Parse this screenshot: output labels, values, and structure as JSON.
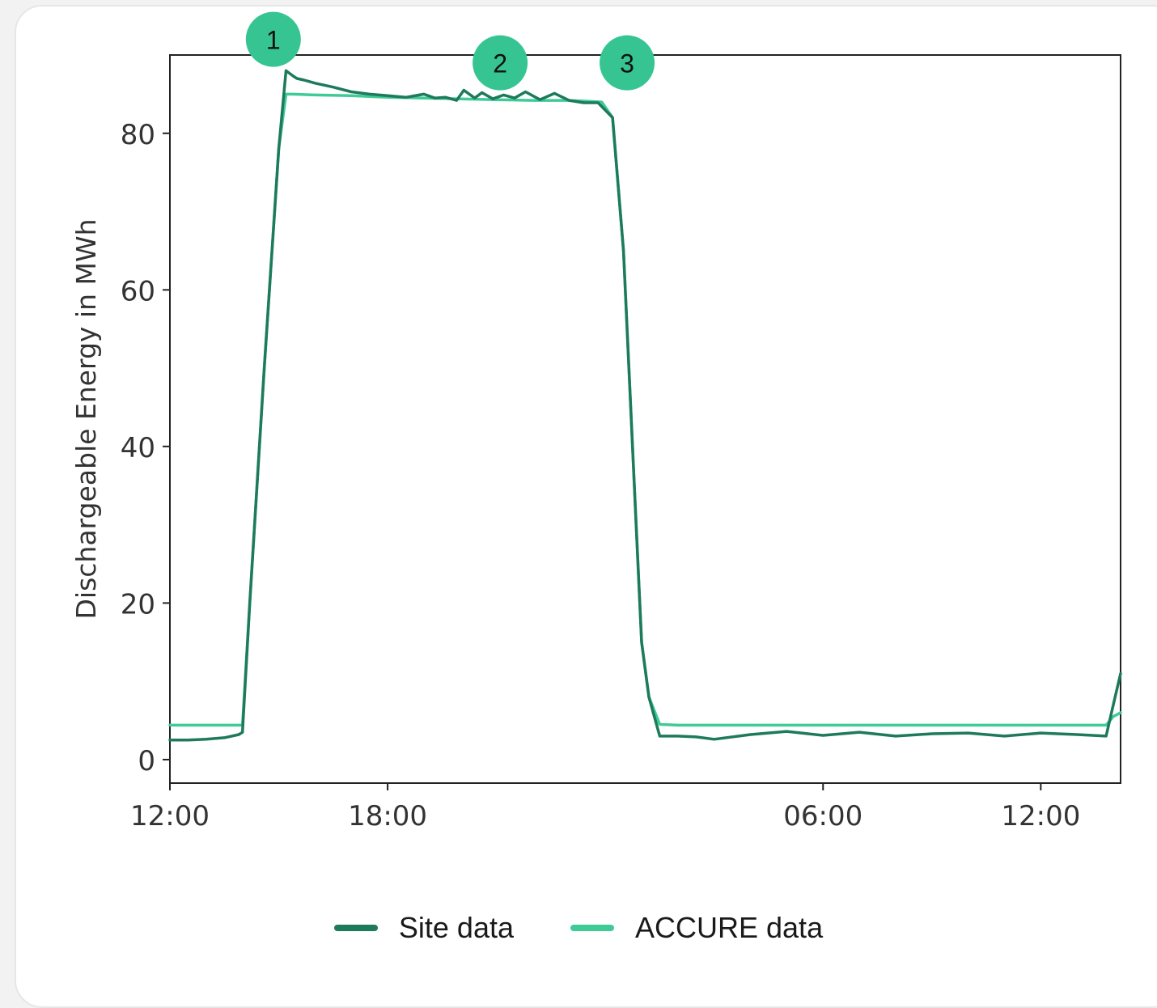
{
  "chart_data": {
    "type": "line",
    "title": "",
    "xlabel": "",
    "ylabel": "Dischargeable Energy in MWh",
    "xlim": [
      0,
      26.2
    ],
    "ylim": [
      -3,
      90
    ],
    "x_ticks": [
      {
        "value": 0,
        "label": "12:00"
      },
      {
        "value": 6,
        "label": "18:00"
      },
      {
        "value": 18,
        "label": "06:00"
      },
      {
        "value": 24,
        "label": "12:00"
      }
    ],
    "y_ticks": [
      0,
      20,
      40,
      60,
      80
    ],
    "grid": false,
    "legend_position": "bottom-center",
    "colors": {
      "site": "#1e7a5c",
      "accure": "#3ecb96",
      "marker": "#36c592"
    },
    "series": [
      {
        "name": "Site data",
        "x": [
          0,
          0.5,
          1,
          1.5,
          1.9,
          2.0,
          2.2,
          2.6,
          3.0,
          3.2,
          3.4,
          3.5,
          3.7,
          4.0,
          4.5,
          5.0,
          5.5,
          6.0,
          6.5,
          7.0,
          7.3,
          7.6,
          7.9,
          8.1,
          8.4,
          8.6,
          8.9,
          9.2,
          9.5,
          9.8,
          10.2,
          10.6,
          11.0,
          11.4,
          11.8,
          12.2,
          12.5,
          12.8,
          13.0,
          13.2,
          13.5,
          14.0,
          14.5,
          15.0,
          16.0,
          17.0,
          18.0,
          19.0,
          20.0,
          21.0,
          22.0,
          23.0,
          24.0,
          25.0,
          25.8,
          26.0,
          26.2
        ],
        "y": [
          2.5,
          2.5,
          2.6,
          2.8,
          3.2,
          3.5,
          20,
          50,
          78,
          88,
          87.3,
          87,
          86.8,
          86.4,
          85.9,
          85.3,
          85.0,
          84.8,
          84.6,
          85.0,
          84.5,
          84.6,
          84.2,
          85.5,
          84.5,
          85.2,
          84.4,
          84.9,
          84.5,
          85.3,
          84.3,
          85.1,
          84.2,
          83.9,
          83.9,
          82,
          65,
          35,
          15,
          8,
          3.0,
          3.0,
          2.9,
          2.6,
          3.2,
          3.6,
          3.1,
          3.5,
          3.0,
          3.3,
          3.4,
          3.0,
          3.4,
          3.2,
          3.0,
          7,
          11
        ]
      },
      {
        "name": "ACCURE data",
        "x": [
          0,
          0.5,
          1,
          1.5,
          1.9,
          2.0,
          2.2,
          2.6,
          3.0,
          3.2,
          3.4,
          4.0,
          5.0,
          6.0,
          7.0,
          8.0,
          9.0,
          10.0,
          11.0,
          11.5,
          11.9,
          12.2,
          12.5,
          12.8,
          13.0,
          13.2,
          13.5,
          14.0,
          16.0,
          18.0,
          20.0,
          22.0,
          24.0,
          25.8,
          26.0,
          26.2
        ],
        "y": [
          4.4,
          4.4,
          4.4,
          4.4,
          4.4,
          4.4,
          20,
          50,
          78,
          85,
          85,
          84.9,
          84.8,
          84.6,
          84.5,
          84.4,
          84.3,
          84.2,
          84.2,
          84.1,
          84.0,
          82,
          65,
          35,
          15,
          8,
          4.5,
          4.4,
          4.4,
          4.4,
          4.4,
          4.4,
          4.4,
          4.4,
          5.5,
          6.0
        ]
      }
    ],
    "annotations": [
      {
        "label": "1",
        "x": 2.85,
        "y": 92
      },
      {
        "label": "2",
        "x": 9.1,
        "y": 89
      },
      {
        "label": "3",
        "x": 12.6,
        "y": 89
      }
    ]
  }
}
